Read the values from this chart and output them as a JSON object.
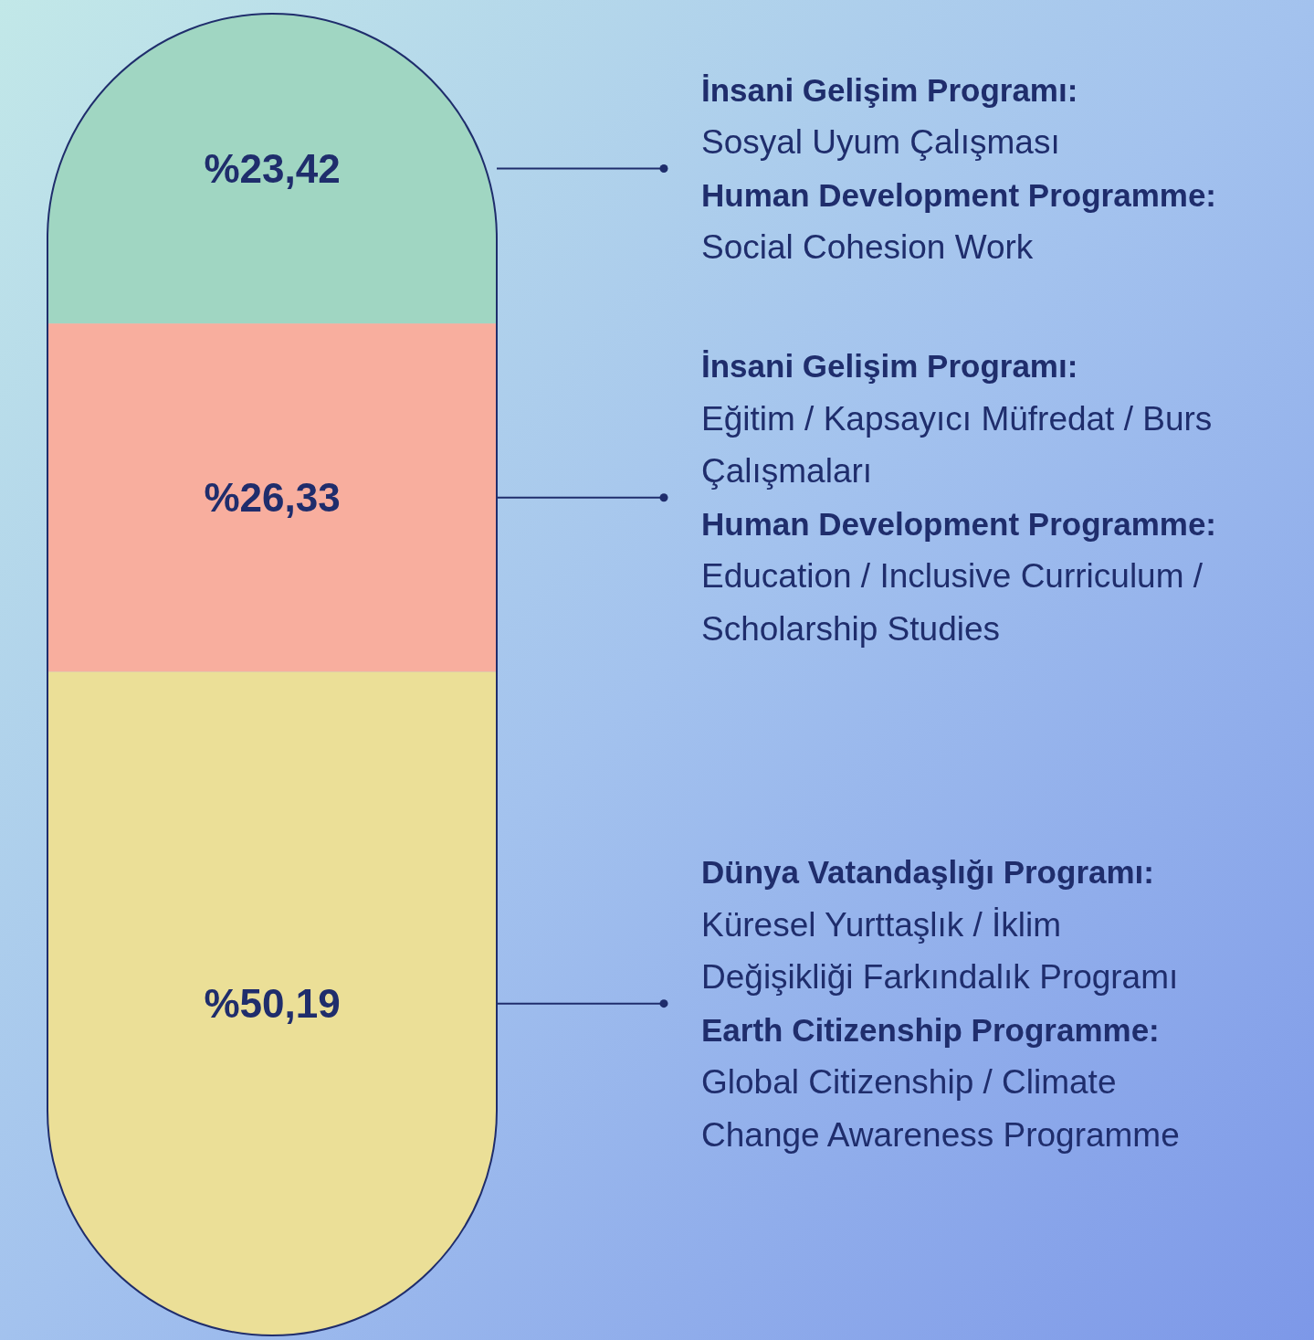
{
  "chart_data": {
    "type": "bar",
    "stacked": true,
    "categories": [
      null
    ],
    "series": [
      {
        "color": "#ebdf97",
        "values": [
          50.19
        ],
        "value_labels": [
          "%50,19"
        ]
      },
      {
        "color": "#f8ae9e",
        "values": [
          26.33
        ],
        "value_labels": [
          "%26,33"
        ]
      },
      {
        "color": "#a0d6c2",
        "values": [
          23.42
        ],
        "value_labels": [
          "%23,42"
        ]
      }
    ],
    "annotations": [
      "İnsani Gelişim Programı:",
      "Sosyal Uyum Çalışması",
      "Human Development Programme:",
      "Social Cohesion Work",
      "İnsani Gelişim Programı:",
      "Eğitim / Kapsayıcı Müfredat / Burs Çalışmaları",
      "Human Development Programme:",
      "Education / Inclusive Curriculum / Scholarship Studies",
      "Dünya Vatandaşlığı Programı:",
      "Küresel Yurttaşlık / İklim Değişikliği Farkındalık Programı",
      "Earth Citizenship Programme:",
      "Global Citizenship / Climate Change Awareness Programme"
    ]
  }
}
